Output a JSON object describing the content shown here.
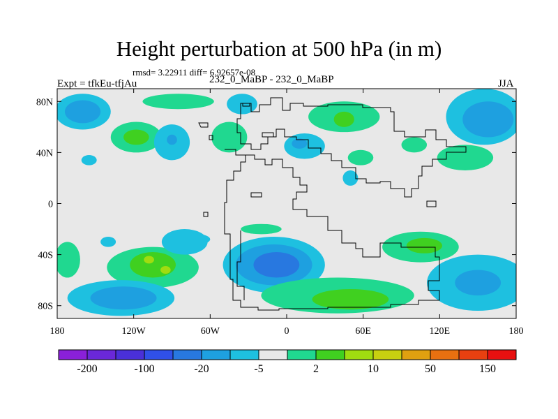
{
  "title": "Height perturbation at 500 hPa (in m)",
  "stats": "rmsd= 3.22911  diff= 6.92657e-08",
  "expt": "Expt = tfkEu-tfjAu",
  "comparison": "232_0_MaBP - 232_0_MaBP",
  "season": "JJA",
  "chart_data": {
    "type": "heatmap",
    "xlim": [
      -180,
      180
    ],
    "ylim": [
      -90,
      90
    ],
    "x_ticks": [
      {
        "value": -180,
        "label": "180"
      },
      {
        "value": -120,
        "label": "120W"
      },
      {
        "value": -60,
        "label": "60W"
      },
      {
        "value": 0,
        "label": "0"
      },
      {
        "value": 60,
        "label": "60E"
      },
      {
        "value": 120,
        "label": "120E"
      },
      {
        "value": 180,
        "label": "180"
      }
    ],
    "y_ticks": [
      {
        "value": 80,
        "label": "80N"
      },
      {
        "value": 40,
        "label": "40N"
      },
      {
        "value": 0,
        "label": "0"
      },
      {
        "value": -40,
        "label": "40S"
      },
      {
        "value": -80,
        "label": "80S"
      }
    ],
    "colorbar": {
      "colors": [
        "#8a20d8",
        "#6a28d8",
        "#4a30d8",
        "#3050e8",
        "#2878e0",
        "#1ea0e0",
        "#1ec0e0",
        "#e8e8e8",
        "#20d890",
        "#40d020",
        "#a0dc10",
        "#c8d010",
        "#e0a010",
        "#e87010",
        "#e84010",
        "#e81010"
      ],
      "labels": [
        {
          "text": "-200",
          "boundary": 1
        },
        {
          "text": "-100",
          "boundary": 3
        },
        {
          "text": "-20",
          "boundary": 5
        },
        {
          "text": "-5",
          "boundary": 7
        },
        {
          "text": "2",
          "boundary": 9
        },
        {
          "text": "10",
          "boundary": 11
        },
        {
          "text": "50",
          "boundary": 13
        },
        {
          "text": "150",
          "boundary": 15
        }
      ]
    },
    "features": [
      {
        "lon": -160,
        "lat": 72,
        "rx": 22,
        "ry": 14,
        "color": "#1ec0e0"
      },
      {
        "lon": -160,
        "lat": 72,
        "rx": 14,
        "ry": 9,
        "color": "#1ea0e0"
      },
      {
        "lon": -118,
        "lat": 52,
        "rx": 20,
        "ry": 12,
        "color": "#20d890"
      },
      {
        "lon": -118,
        "lat": 52,
        "rx": 10,
        "ry": 6,
        "color": "#40d020"
      },
      {
        "lon": -90,
        "lat": 48,
        "rx": 14,
        "ry": 14,
        "color": "#1ec0e0"
      },
      {
        "lon": -90,
        "lat": 50,
        "rx": 4,
        "ry": 4,
        "color": "#1ea0e0"
      },
      {
        "lon": -85,
        "lat": 80,
        "rx": 28,
        "ry": 6,
        "color": "#20d890"
      },
      {
        "lon": -45,
        "lat": 52,
        "rx": 14,
        "ry": 12,
        "color": "#20d890"
      },
      {
        "lon": -35,
        "lat": 78,
        "rx": 12,
        "ry": 8,
        "color": "#1ec0e0"
      },
      {
        "lon": 14,
        "lat": 45,
        "rx": 16,
        "ry": 10,
        "color": "#1ec0e0"
      },
      {
        "lon": 10,
        "lat": 47,
        "rx": 6,
        "ry": 4,
        "color": "#1ea0e0"
      },
      {
        "lon": 45,
        "lat": 68,
        "rx": 28,
        "ry": 12,
        "color": "#20d890"
      },
      {
        "lon": 45,
        "lat": 66,
        "rx": 8,
        "ry": 6,
        "color": "#40d020"
      },
      {
        "lon": 155,
        "lat": 68,
        "rx": 30,
        "ry": 22,
        "color": "#1ec0e0"
      },
      {
        "lon": 158,
        "lat": 66,
        "rx": 20,
        "ry": 14,
        "color": "#1ea0e0"
      },
      {
        "lon": 140,
        "lat": 36,
        "rx": 22,
        "ry": 10,
        "color": "#20d890"
      },
      {
        "lon": 100,
        "lat": 46,
        "rx": 10,
        "ry": 6,
        "color": "#20d890"
      },
      {
        "lon": 58,
        "lat": 36,
        "rx": 10,
        "ry": 6,
        "color": "#20d890"
      },
      {
        "lon": 50,
        "lat": 20,
        "rx": 6,
        "ry": 6,
        "color": "#1ec0e0"
      },
      {
        "lon": -155,
        "lat": 34,
        "rx": 6,
        "ry": 4,
        "color": "#1ec0e0"
      },
      {
        "lon": -20,
        "lat": -20,
        "rx": 16,
        "ry": 4,
        "color": "#20d890"
      },
      {
        "lon": -140,
        "lat": -30,
        "rx": 6,
        "ry": 4,
        "color": "#1ec0e0"
      },
      {
        "lon": -70,
        "lat": -28,
        "rx": 10,
        "ry": 4,
        "color": "#1ec0e0"
      },
      {
        "lon": -172,
        "lat": -44,
        "rx": 10,
        "ry": 14,
        "color": "#20d890"
      },
      {
        "lon": -105,
        "lat": -50,
        "rx": 36,
        "ry": 16,
        "color": "#20d890"
      },
      {
        "lon": -105,
        "lat": -48,
        "rx": 18,
        "ry": 10,
        "color": "#40d020"
      },
      {
        "lon": -108,
        "lat": -44,
        "rx": 4,
        "ry": 3,
        "color": "#a0dc10"
      },
      {
        "lon": -95,
        "lat": -52,
        "rx": 4,
        "ry": 3,
        "color": "#a0dc10"
      },
      {
        "lon": -80,
        "lat": -30,
        "rx": 18,
        "ry": 10,
        "color": "#1ec0e0"
      },
      {
        "lon": -10,
        "lat": -48,
        "rx": 40,
        "ry": 22,
        "color": "#1ec0e0"
      },
      {
        "lon": -10,
        "lat": -48,
        "rx": 30,
        "ry": 16,
        "color": "#1ea0e0"
      },
      {
        "lon": -8,
        "lat": -48,
        "rx": 18,
        "ry": 10,
        "color": "#2878e0"
      },
      {
        "lon": 105,
        "lat": -34,
        "rx": 30,
        "ry": 12,
        "color": "#20d890"
      },
      {
        "lon": 108,
        "lat": -33,
        "rx": 14,
        "ry": 6,
        "color": "#40d020"
      },
      {
        "lon": 150,
        "lat": -62,
        "rx": 40,
        "ry": 22,
        "color": "#1ec0e0"
      },
      {
        "lon": 150,
        "lat": -62,
        "rx": 18,
        "ry": 10,
        "color": "#1ea0e0"
      },
      {
        "lon": 40,
        "lat": -72,
        "rx": 60,
        "ry": 14,
        "color": "#20d890"
      },
      {
        "lon": 50,
        "lat": -75,
        "rx": 30,
        "ry": 8,
        "color": "#40d020"
      },
      {
        "lon": -130,
        "lat": -74,
        "rx": 42,
        "ry": 14,
        "color": "#1ec0e0"
      },
      {
        "lon": -128,
        "lat": -74,
        "rx": 26,
        "ry": 9,
        "color": "#1ea0e0"
      }
    ]
  }
}
